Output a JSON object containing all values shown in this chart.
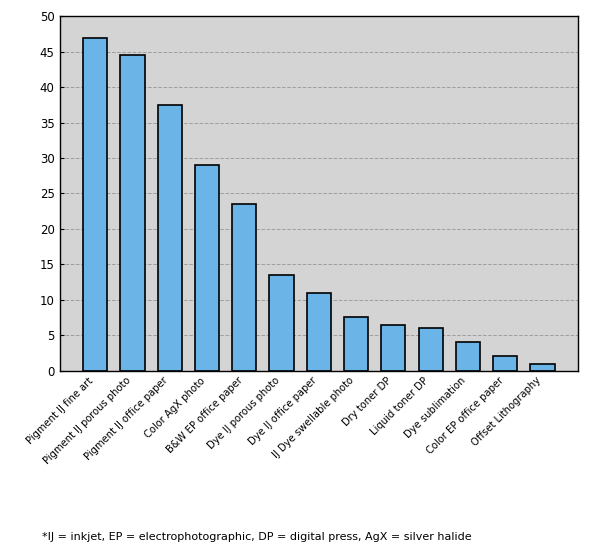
{
  "categories": [
    "Pigment IJ fine art",
    "Pigment IJ porous photo",
    "Pigment IJ office paper",
    "Color AgX photo",
    "B&W EP office paper",
    "Dye IJ porous photo",
    "Dye IJ office paper",
    "IJ Dye swellable photo",
    "Dry toner DP",
    "Liquid toner DP",
    "Dye sublimation",
    "Color EP office paper",
    "Offset Lithography"
  ],
  "values": [
    47,
    44.5,
    37.5,
    29,
    23.5,
    13.5,
    11,
    7.5,
    6.5,
    6,
    4,
    2,
    1
  ],
  "bar_color": "#6ab4e8",
  "bar_edge_color": "#000000",
  "plot_bg_color": "#d4d4d4",
  "outer_bg_color": "#ffffff",
  "ylabel_ticks": [
    0,
    5,
    10,
    15,
    20,
    25,
    30,
    35,
    40,
    45,
    50
  ],
  "ylim": [
    0,
    50
  ],
  "footnote": "*IJ = inkjet, EP = electrophotographic, DP = digital press, AgX = silver halide",
  "grid_color": "#999999",
  "bar_width": 0.65,
  "label_fontsize": 7.2,
  "tick_fontsize": 8.5,
  "footnote_fontsize": 8.0
}
